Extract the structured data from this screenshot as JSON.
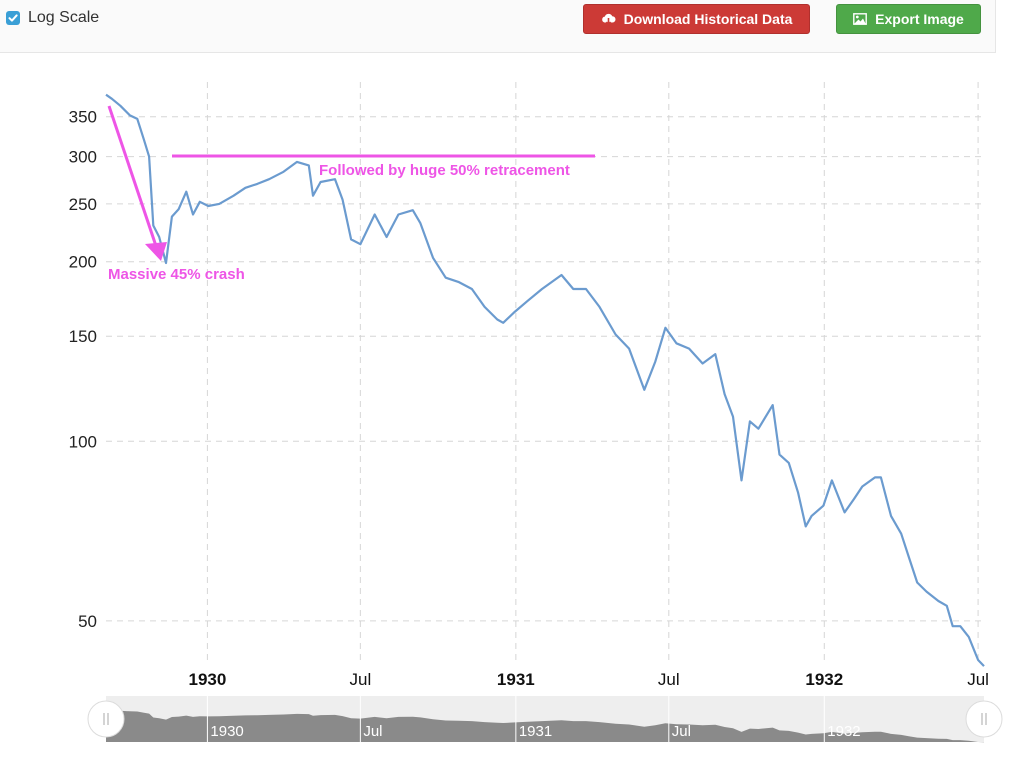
{
  "toolbar": {
    "logscale_label": "Log Scale",
    "logscale_checked": true,
    "download_label": "Download Historical Data",
    "download_icon": "cloud-download-icon",
    "export_label": "Export Image",
    "export_icon": "image-icon",
    "download_color": "#cc3a36",
    "export_color": "#4fa94a"
  },
  "annotations": {
    "crash": "Massive 45% crash",
    "retracement": "Followed by huge 50% retracement",
    "color": "#ee55e6"
  },
  "navigator": {
    "labels": [
      "1930",
      "Jul",
      "1931",
      "Jul",
      "1932"
    ]
  },
  "chart_data": {
    "type": "line",
    "title": "",
    "xlabel": "",
    "ylabel": "",
    "log_scale": true,
    "grid": true,
    "line_color": "#6b9bcf",
    "xlim": [
      "1929-09-03",
      "1932-07-08"
    ],
    "ylim": [
      43,
      385
    ],
    "y_ticks": [
      50,
      100,
      150,
      200,
      250,
      300,
      350
    ],
    "x_ticks": [
      {
        "date": "1930-01-01",
        "label": "1930",
        "bold": true
      },
      {
        "date": "1930-07-01",
        "label": "Jul",
        "bold": false
      },
      {
        "date": "1931-01-01",
        "label": "1931",
        "bold": true
      },
      {
        "date": "1931-07-01",
        "label": "Jul",
        "bold": false
      },
      {
        "date": "1932-01-01",
        "label": "1932",
        "bold": true
      },
      {
        "date": "1932-07-01",
        "label": "Jul",
        "bold": false
      }
    ],
    "series": [
      {
        "name": "",
        "x": [
          "1929-09-03",
          "1929-09-10",
          "1929-09-20",
          "1929-10-01",
          "1929-10-10",
          "1929-10-18",
          "1929-10-24",
          "1929-10-29",
          "1929-11-05",
          "1929-11-13",
          "1929-11-20",
          "1929-11-28",
          "1929-12-07",
          "1929-12-15",
          "1929-12-23",
          "1930-01-02",
          "1930-01-15",
          "1930-02-01",
          "1930-02-15",
          "1930-03-01",
          "1930-03-15",
          "1930-04-01",
          "1930-04-17",
          "1930-05-01",
          "1930-05-06",
          "1930-05-15",
          "1930-06-01",
          "1930-06-10",
          "1930-06-20",
          "1930-07-01",
          "1930-07-18",
          "1930-08-01",
          "1930-08-15",
          "1930-09-01",
          "1930-09-10",
          "1930-09-25",
          "1930-10-10",
          "1930-10-25",
          "1930-11-10",
          "1930-11-25",
          "1930-12-10",
          "1930-12-17",
          "1930-12-31",
          "1931-01-15",
          "1931-02-01",
          "1931-02-24",
          "1931-03-10",
          "1931-03-25",
          "1931-04-10",
          "1931-04-29",
          "1931-05-15",
          "1931-06-02",
          "1931-06-15",
          "1931-06-27",
          "1931-07-10",
          "1931-07-25",
          "1931-08-10",
          "1931-08-25",
          "1931-09-05",
          "1931-09-15",
          "1931-09-25",
          "1931-10-05",
          "1931-10-15",
          "1931-11-01",
          "1931-11-09",
          "1931-11-20",
          "1931-12-01",
          "1931-12-10",
          "1931-12-17",
          "1931-12-31",
          "1932-01-10",
          "1932-01-25",
          "1932-02-05",
          "1932-02-15",
          "1932-03-01",
          "1932-03-08",
          "1932-03-20",
          "1932-04-01",
          "1932-04-10",
          "1932-04-20",
          "1932-05-01",
          "1932-05-15",
          "1932-05-25",
          "1932-06-01",
          "1932-06-10",
          "1932-06-20",
          "1932-07-01",
          "1932-07-08"
        ],
        "values": [
          381,
          375,
          365,
          352,
          347,
          320,
          300,
          230,
          220,
          199,
          238,
          245,
          262,
          240,
          252,
          248,
          250,
          258,
          266,
          270,
          275,
          283,
          294,
          290,
          258,
          272,
          275,
          254,
          218,
          214,
          240,
          220,
          240,
          244,
          232,
          203,
          188,
          185,
          180,
          168,
          160,
          158,
          165,
          172,
          180,
          190,
          180,
          180,
          168,
          151,
          143,
          122,
          136,
          155,
          146,
          143,
          135,
          140,
          120,
          110,
          86,
          108,
          105,
          115,
          95,
          92,
          82,
          72,
          75,
          78,
          86,
          76,
          80,
          84,
          87,
          87,
          75,
          70,
          64,
          58,
          56,
          54,
          53,
          49,
          49,
          47,
          43,
          42
        ]
      }
    ]
  }
}
